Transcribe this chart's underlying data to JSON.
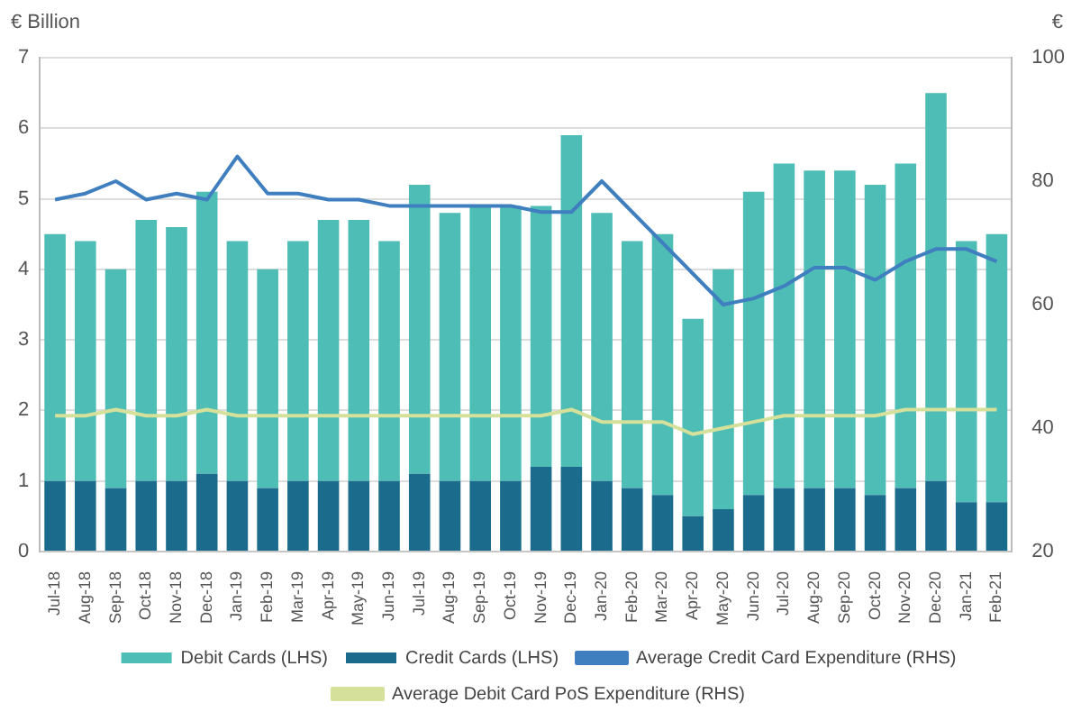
{
  "chart_data": {
    "type": "bar",
    "ylabel": "€ Billion",
    "y2label": "€",
    "stacked": true,
    "grid": "y",
    "legend": "bottom",
    "categories": [
      "Jul-18",
      "Aug-18",
      "Sep-18",
      "Oct-18",
      "Nov-18",
      "Dec-18",
      "Jan-19",
      "Feb-19",
      "Mar-19",
      "Apr-19",
      "May-19",
      "Jun-19",
      "Jul-19",
      "Aug-19",
      "Sep-19",
      "Oct-19",
      "Nov-19",
      "Dec-19",
      "Jan-20",
      "Feb-20",
      "Mar-20",
      "Apr-20",
      "May-20",
      "Jun-20",
      "Jul-20",
      "Aug-20",
      "Sep-20",
      "Oct-20",
      "Nov-20",
      "Dec-20",
      "Jan-21",
      "Feb-21"
    ],
    "ylim": [
      0,
      7
    ],
    "yticks": [
      0,
      1,
      2,
      3,
      4,
      5,
      6,
      7
    ],
    "y2lim": [
      20,
      100
    ],
    "y2ticks": [
      20,
      40,
      60,
      80,
      100
    ],
    "series": [
      {
        "name": "Credit Cards (LHS)",
        "color": "#1b6c8c",
        "values": [
          1.0,
          1.0,
          0.9,
          1.0,
          1.0,
          1.1,
          1.0,
          0.9,
          1.0,
          1.0,
          1.0,
          1.0,
          1.1,
          1.0,
          1.0,
          1.0,
          1.2,
          1.2,
          1.0,
          0.9,
          0.8,
          0.5,
          0.6,
          0.8,
          0.9,
          0.9,
          0.9,
          0.8,
          0.9,
          1.0,
          0.7,
          0.7
        ]
      },
      {
        "name": "Debit Cards (LHS)",
        "color": "#4dbdb5",
        "values": [
          3.5,
          3.4,
          3.1,
          3.7,
          3.6,
          4.0,
          3.4,
          3.1,
          3.4,
          3.7,
          3.7,
          3.4,
          4.1,
          3.8,
          3.9,
          3.9,
          3.7,
          4.7,
          3.8,
          3.5,
          3.7,
          2.8,
          3.4,
          4.3,
          4.6,
          4.5,
          4.5,
          4.4,
          4.6,
          5.5,
          3.7,
          3.8
        ]
      },
      {
        "name": "Average Credit Card Expenditure (RHS)",
        "type": "line",
        "axis": "y2",
        "color": "#3f7fc0",
        "values": [
          77,
          78,
          80,
          77,
          78,
          77,
          84,
          78,
          78,
          77,
          77,
          76,
          76,
          76,
          76,
          76,
          75,
          75,
          80,
          75,
          70,
          65,
          60,
          61,
          63,
          66,
          66,
          64,
          67,
          69,
          69,
          67
        ]
      },
      {
        "name": "Average Debit Card PoS Expenditure (RHS)",
        "type": "line",
        "axis": "y2",
        "color": "#d5e09a",
        "values": [
          42,
          42,
          43,
          42,
          42,
          43,
          42,
          42,
          42,
          42,
          42,
          42,
          42,
          42,
          42,
          42,
          42,
          43,
          41,
          41,
          41,
          39,
          40,
          41,
          42,
          42,
          42,
          42,
          43,
          43,
          43,
          43
        ]
      }
    ]
  }
}
